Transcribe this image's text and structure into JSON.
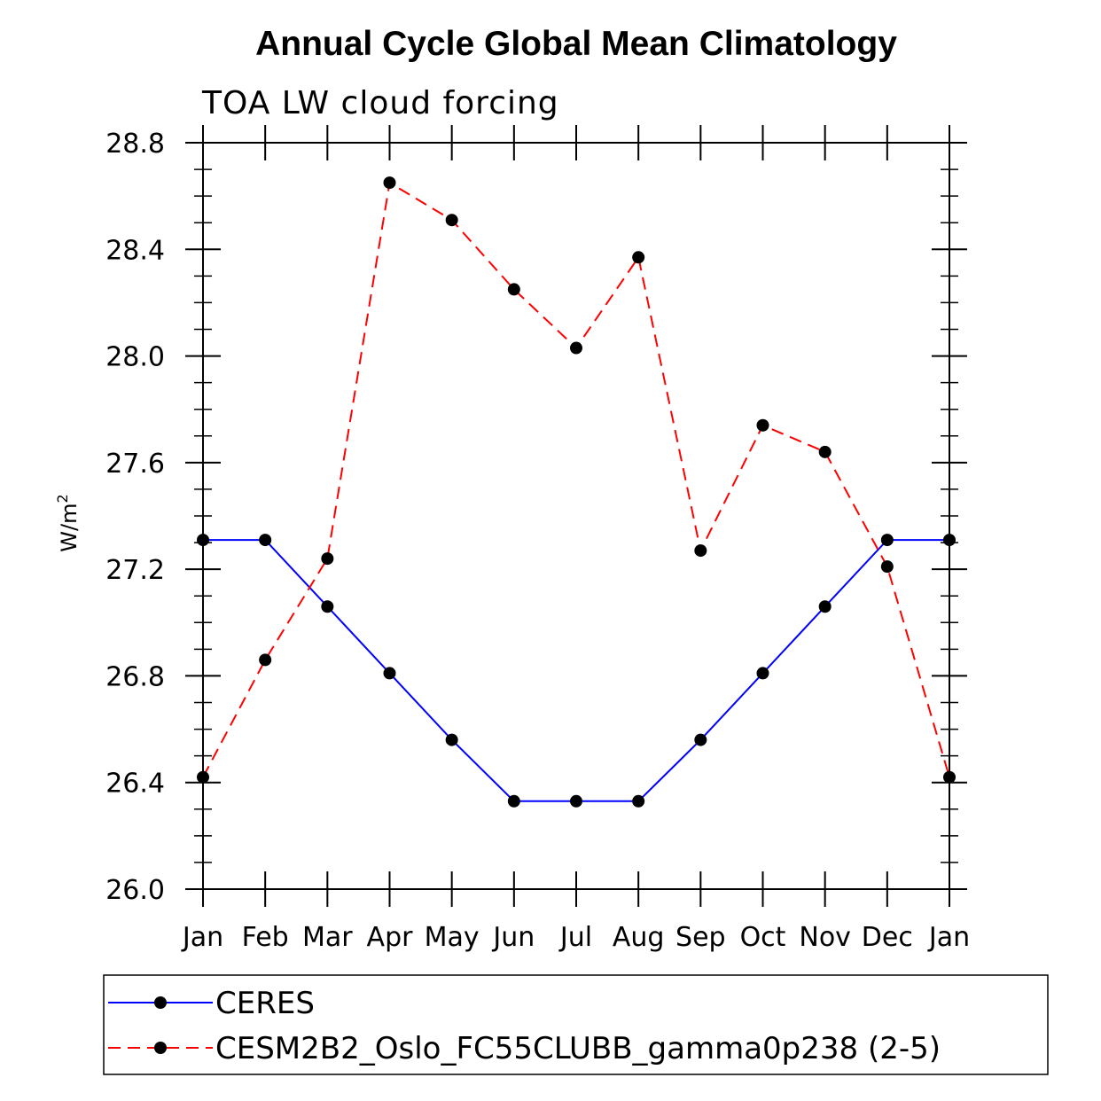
{
  "chart_data": {
    "type": "line",
    "title": "Annual Cycle Global Mean Climatology",
    "subtitle": "TOA LW cloud forcing",
    "ylabel_base": "W/m",
    "ylabel_sup": "2",
    "xlabel": "",
    "categories": [
      "Jan",
      "Feb",
      "Mar",
      "Apr",
      "May",
      "Jun",
      "Jul",
      "Aug",
      "Sep",
      "Oct",
      "Nov",
      "Dec",
      "Jan"
    ],
    "ylim": [
      26.0,
      28.8
    ],
    "yticks": [
      "26.0",
      "26.4",
      "26.8",
      "27.2",
      "27.6",
      "28.0",
      "28.4",
      "28.8"
    ],
    "series": [
      {
        "name": "CERES",
        "color": "#0000ff",
        "style": "solid",
        "values": [
          27.31,
          27.31,
          27.06,
          26.81,
          26.56,
          26.33,
          26.33,
          26.33,
          26.56,
          26.81,
          27.06,
          27.31,
          27.31
        ]
      },
      {
        "name": "CESM2B2_Oslo_FC55CLUBB_gamma0p238 (2-5)",
        "color": "#ff0000",
        "style": "dashed",
        "values": [
          26.42,
          26.86,
          27.24,
          28.65,
          28.51,
          28.25,
          28.03,
          28.37,
          27.27,
          27.74,
          27.64,
          27.21,
          26.42
        ]
      }
    ]
  }
}
